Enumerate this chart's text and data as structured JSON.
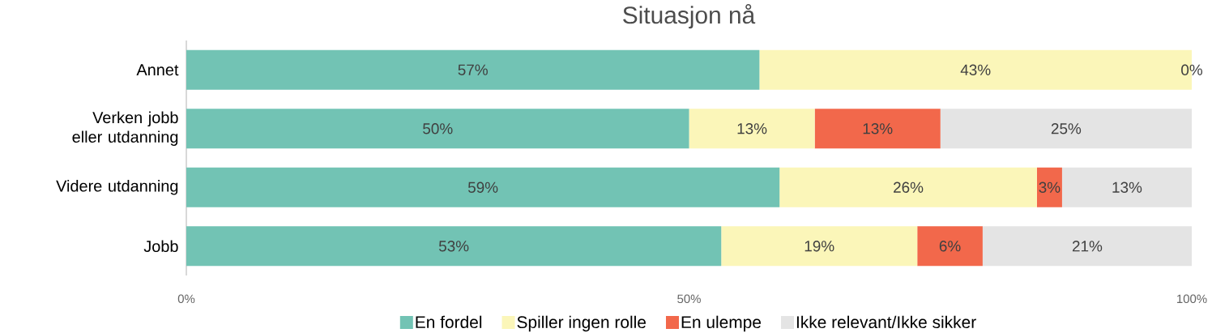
{
  "chart_data": {
    "type": "bar",
    "orientation": "horizontal",
    "stacked": true,
    "title": "Situasjon nå",
    "categories": [
      "Annet",
      "Verken jobb eller utdanning",
      "Videre utdanning",
      "Jobb"
    ],
    "series": [
      {
        "name": "En fordel",
        "color": "#72c3b4",
        "values": [
          57,
          50,
          59,
          53.2
        ],
        "value_labels": [
          "57%",
          "50%",
          "59%",
          "53%"
        ]
      },
      {
        "name": "Spiller ingen rolle",
        "color": "#fbf6b9",
        "values": [
          43,
          12.5,
          25.6,
          19.5
        ],
        "value_labels": [
          "43%",
          "13%",
          "26%",
          "19%"
        ]
      },
      {
        "name": "En ulempe",
        "color": "#f2684b",
        "values": [
          0,
          12.5,
          2.5,
          6.5
        ],
        "value_labels": [
          "0%",
          "13%",
          "3%",
          "6%"
        ]
      },
      {
        "name": "Ikke relevant/Ikke sikker",
        "color": "#e4e4e4",
        "values": [
          null,
          25,
          12.9,
          20.8
        ],
        "value_labels": [
          null,
          "25%",
          "13%",
          "21%"
        ]
      }
    ],
    "xlim": [
      0,
      100
    ],
    "xticks": [
      {
        "value": 0,
        "label": "0%"
      },
      {
        "value": 50,
        "label": "50%"
      },
      {
        "value": 100,
        "label": "100%"
      }
    ],
    "legend": "bottom"
  }
}
